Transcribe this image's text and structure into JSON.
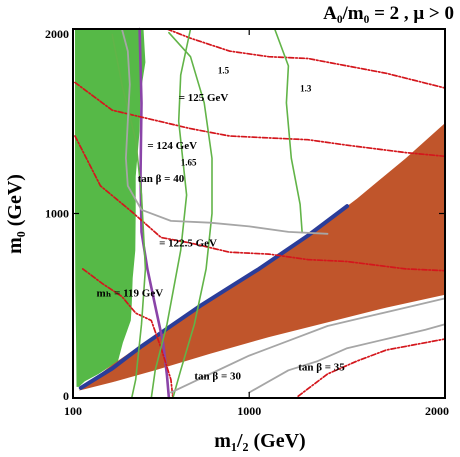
{
  "chart_data": {
    "type": "contour",
    "title": "A₀/m₀ = 2 ,  μ > 0",
    "xlabel": "m₁/₂ (GeV)",
    "ylabel": "m₀ (GeV)",
    "xlim": [
      100,
      2000
    ],
    "ylim": [
      0,
      2000
    ],
    "x_ticks": [
      100,
      1000,
      2000
    ],
    "x_tick_labels": [
      "100",
      "1000",
      "2000"
    ],
    "y_ticks": [
      0,
      1000,
      2000
    ],
    "y_tick_labels": [
      "0",
      "1000",
      "2000"
    ],
    "grid": false,
    "colors": {
      "excluded_green": "#56b947",
      "stau_lsp_brown": "#c0552b",
      "relic_blue": "#2b3d99",
      "higgs_red": "#d4161c",
      "ratio_green": "#62b448",
      "tanb_gray": "#a6a6a6",
      "bsgamma_purple": "#8a44a8"
    },
    "regions": [
      {
        "name": "excluded_green",
        "color": "#56b947",
        "polygon": [
          [
            110,
            2000
          ],
          [
            460,
            2000
          ],
          [
            470,
            1820
          ],
          [
            445,
            1650
          ],
          [
            440,
            1450
          ],
          [
            420,
            1200
          ],
          [
            420,
            1000
          ],
          [
            418,
            800
          ],
          [
            405,
            650
          ],
          [
            400,
            500
          ],
          [
            395,
            420
          ],
          [
            355,
            300
          ],
          [
            330,
            200
          ],
          [
            230,
            130
          ],
          [
            160,
            90
          ],
          [
            130,
            60
          ],
          [
            118,
            60
          ],
          [
            116,
            300
          ],
          [
            112,
            600
          ],
          [
            110,
            1000
          ]
        ]
      },
      {
        "name": "stau_lsp_brown",
        "color": "#c0552b",
        "polygon": [
          [
            130,
            40
          ],
          [
            300,
            85
          ],
          [
            520,
            150
          ],
          [
            800,
            240
          ],
          [
            1100,
            330
          ],
          [
            1400,
            410
          ],
          [
            1700,
            490
          ],
          [
            2000,
            560
          ],
          [
            2000,
            1490
          ],
          [
            1800,
            1300
          ],
          [
            1550,
            1080
          ],
          [
            1300,
            880
          ],
          [
            1050,
            700
          ],
          [
            900,
            600
          ],
          [
            750,
            500
          ],
          [
            600,
            390
          ],
          [
            450,
            290
          ],
          [
            300,
            180
          ],
          [
            200,
            100
          ]
        ]
      }
    ],
    "lines": [
      {
        "name": "relic_density_strip",
        "style": "blue-band",
        "points": [
          [
            140,
            55
          ],
          [
            300,
            160
          ],
          [
            450,
            280
          ],
          [
            600,
            390
          ],
          [
            750,
            500
          ],
          [
            900,
            600
          ],
          [
            1050,
            700
          ],
          [
            1300,
            880
          ],
          [
            1500,
            1040
          ]
        ]
      },
      {
        "name": "bsgamma_boundary",
        "style": "purple-solid",
        "points": [
          [
            440,
            2000
          ],
          [
            450,
            1600
          ],
          [
            445,
            1200
          ],
          [
            450,
            900
          ],
          [
            480,
            700
          ],
          [
            520,
            500
          ],
          [
            560,
            300
          ],
          [
            580,
            120
          ],
          [
            590,
            0
          ]
        ]
      },
      {
        "name": "mh_125",
        "style": "red-dashdot",
        "label": "= 125 GeV",
        "points": [
          [
            580,
            2000
          ],
          [
            700,
            1950
          ],
          [
            900,
            1880
          ],
          [
            1100,
            1850
          ],
          [
            1300,
            1840
          ],
          [
            1500,
            1800
          ],
          [
            1700,
            1760
          ],
          [
            2000,
            1680
          ]
        ]
      },
      {
        "name": "mh_124",
        "style": "red-dashdot",
        "label": "= 124 GeV",
        "points": [
          [
            110,
            1710
          ],
          [
            300,
            1560
          ],
          [
            500,
            1510
          ],
          [
            700,
            1460
          ],
          [
            900,
            1420
          ],
          [
            1100,
            1410
          ],
          [
            1300,
            1400
          ],
          [
            1500,
            1370
          ],
          [
            1800,
            1330
          ],
          [
            2000,
            1310
          ]
        ]
      },
      {
        "name": "mh_122_5",
        "style": "red-dashdot",
        "label": "= 122.5 GeV",
        "points": [
          [
            110,
            1420
          ],
          [
            240,
            1150
          ],
          [
            400,
            1010
          ],
          [
            550,
            870
          ],
          [
            700,
            840
          ],
          [
            900,
            790
          ],
          [
            1100,
            780
          ],
          [
            1300,
            750
          ],
          [
            1500,
            740
          ],
          [
            1800,
            700
          ],
          [
            2000,
            690
          ]
        ]
      },
      {
        "name": "mh_119",
        "style": "red-dashdot",
        "label": "mₕ = 119 GeV",
        "points": [
          [
            150,
            700
          ],
          [
            250,
            620
          ],
          [
            350,
            550
          ],
          [
            420,
            460
          ],
          [
            500,
            420
          ],
          [
            550,
            270
          ],
          [
            600,
            100
          ],
          [
            610,
            0
          ]
        ]
      },
      {
        "name": "mh_lower_right",
        "style": "red-dashdot",
        "points": [
          [
            1250,
            10
          ],
          [
            1400,
            130
          ],
          [
            1550,
            200
          ],
          [
            1700,
            260
          ],
          [
            2000,
            320
          ]
        ]
      },
      {
        "name": "ratio_1_3",
        "style": "green-solid",
        "label": "1.3",
        "points": [
          [
            1130,
            2000
          ],
          [
            1200,
            1800
          ],
          [
            1190,
            1600
          ],
          [
            1215,
            1300
          ],
          [
            1260,
            1050
          ],
          [
            1270,
            900
          ]
        ]
      },
      {
        "name": "ratio_1_5",
        "style": "green-solid",
        "label": "1.5",
        "points": [
          [
            590,
            1980
          ],
          [
            700,
            1850
          ],
          [
            770,
            1600
          ],
          [
            810,
            1300
          ],
          [
            810,
            1000
          ],
          [
            780,
            700
          ],
          [
            720,
            400
          ],
          [
            650,
            150
          ],
          [
            610,
            0
          ]
        ]
      },
      {
        "name": "ratio_1_65",
        "style": "green-solid",
        "label": "1.65",
        "points": [
          [
            700,
            2000
          ],
          [
            650,
            1750
          ],
          [
            640,
            1500
          ],
          [
            680,
            1100
          ],
          [
            650,
            800
          ],
          [
            580,
            400
          ],
          [
            520,
            150
          ],
          [
            500,
            0
          ]
        ]
      },
      {
        "name": "ratio_extra",
        "style": "green-solid",
        "points": [
          [
            300,
            1970
          ],
          [
            350,
            1700
          ],
          [
            420,
            1400
          ],
          [
            450,
            1100
          ],
          [
            470,
            700
          ],
          [
            450,
            400
          ],
          [
            420,
            100
          ],
          [
            400,
            0
          ]
        ]
      },
      {
        "name": "tanb_40",
        "style": "gray-solid",
        "label": "tan β = 40",
        "points": [
          [
            350,
            2000
          ],
          [
            380,
            1880
          ],
          [
            390,
            1700
          ],
          [
            380,
            1500
          ],
          [
            370,
            1300
          ],
          [
            380,
            1150
          ],
          [
            450,
            1020
          ],
          [
            600,
            960
          ],
          [
            800,
            950
          ],
          [
            1000,
            930
          ],
          [
            1200,
            900
          ],
          [
            1400,
            890
          ]
        ]
      },
      {
        "name": "tanb_30",
        "style": "gray-solid",
        "label": "tan β = 30",
        "points": [
          [
            600,
            30
          ],
          [
            800,
            130
          ],
          [
            1000,
            230
          ],
          [
            1200,
            310
          ],
          [
            1400,
            390
          ],
          [
            1600,
            440
          ],
          [
            1800,
            490
          ],
          [
            2000,
            540
          ]
        ]
      },
      {
        "name": "tanb_35",
        "style": "gray-solid",
        "label": "tan β = 35",
        "points": [
          [
            1000,
            30
          ],
          [
            1200,
            150
          ],
          [
            1350,
            200
          ],
          [
            1500,
            270
          ],
          [
            1700,
            320
          ],
          [
            1900,
            370
          ],
          [
            2000,
            400
          ]
        ]
      }
    ],
    "labels": [
      {
        "text": "= 125 GeV",
        "x": 640,
        "y": 1610
      },
      {
        "text": "= 124 GeV",
        "x": 480,
        "y": 1350
      },
      {
        "text": "1.65",
        "x": 650,
        "y": 1260
      },
      {
        "text": "tan β = 40",
        "x": 430,
        "y": 1170
      },
      {
        "text": "= 122.5 GeV",
        "x": 540,
        "y": 820
      },
      {
        "text": "mₕ = 119 GeV",
        "x": 220,
        "y": 550
      },
      {
        "text": "1.5",
        "x": 840,
        "y": 1760
      },
      {
        "text": "1.3",
        "x": 1260,
        "y": 1660
      },
      {
        "text": "tan β = 30",
        "x": 720,
        "y": 100
      },
      {
        "text": "tan β = 35",
        "x": 1250,
        "y": 150
      }
    ]
  }
}
